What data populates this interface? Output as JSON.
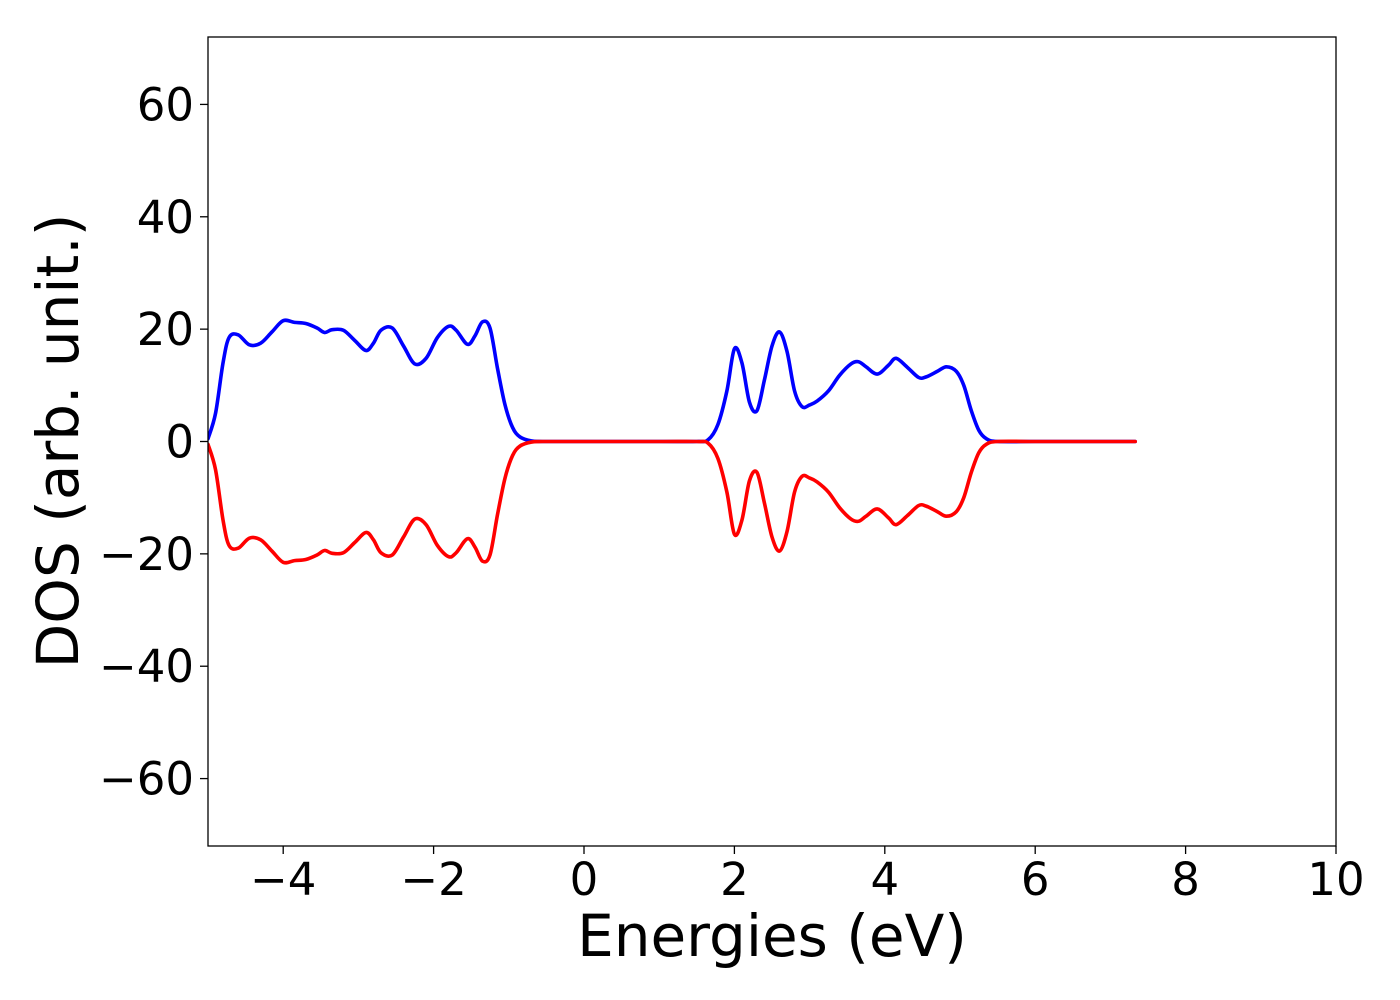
{
  "chart_data": {
    "type": "line",
    "title": "",
    "xlabel": "Energies (eV)",
    "ylabel": "DOS (arb. unit.)",
    "xlim": [
      -5,
      10
    ],
    "ylim": [
      -72,
      72
    ],
    "xticks": [
      -4,
      -2,
      0,
      2,
      4,
      6,
      8,
      10
    ],
    "yticks": [
      -60,
      -40,
      -20,
      0,
      20,
      40,
      60
    ],
    "xtick_labels": [
      "−4",
      "−2",
      "0",
      "2",
      "4",
      "6",
      "8",
      "10"
    ],
    "ytick_labels": [
      "−60",
      "−40",
      "−20",
      "0",
      "20",
      "40",
      "60"
    ],
    "grid": false,
    "legend": "none",
    "series": [
      {
        "color": "#0000ff",
        "x": [
          -5.0,
          -4.9,
          -4.8,
          -4.72,
          -4.6,
          -4.45,
          -4.3,
          -4.15,
          -4.0,
          -3.85,
          -3.7,
          -3.55,
          -3.45,
          -3.35,
          -3.2,
          -3.05,
          -2.9,
          -2.8,
          -2.7,
          -2.55,
          -2.4,
          -2.25,
          -2.1,
          -1.95,
          -1.8,
          -1.7,
          -1.55,
          -1.45,
          -1.35,
          -1.25,
          -1.15,
          -1.05,
          -0.95,
          -0.85,
          -0.7,
          -0.55,
          0.0,
          1.0,
          1.5,
          1.65,
          1.78,
          1.9,
          2.0,
          2.1,
          2.2,
          2.3,
          2.4,
          2.5,
          2.6,
          2.7,
          2.8,
          2.9,
          3.0,
          3.1,
          3.25,
          3.4,
          3.55,
          3.65,
          3.75,
          3.9,
          4.05,
          4.15,
          4.3,
          4.45,
          4.55,
          4.7,
          4.82,
          4.95,
          5.05,
          5.15,
          5.25,
          5.35,
          5.5,
          6.0,
          6.5,
          7.33
        ],
        "values": [
          0.5,
          5,
          14,
          18.5,
          19,
          17.2,
          17.5,
          19.5,
          21.5,
          21.2,
          21,
          20.2,
          19.4,
          19.9,
          19.8,
          18,
          16.2,
          17.5,
          19.8,
          20.2,
          17,
          13.8,
          14.8,
          18.5,
          20.5,
          19.8,
          17.3,
          18.8,
          21.3,
          20.2,
          13,
          6.5,
          2.5,
          0.8,
          0.1,
          0,
          0,
          0,
          0,
          0.3,
          3,
          9,
          16.5,
          14,
          7,
          5.5,
          11,
          17,
          19.5,
          16,
          9,
          6.2,
          6.5,
          7.2,
          9,
          11.8,
          13.8,
          14.2,
          13.3,
          12,
          13.6,
          14.8,
          13.2,
          11.4,
          11.5,
          12.5,
          13.3,
          12.5,
          10,
          5.5,
          2,
          0.5,
          0,
          0,
          0,
          0
        ]
      },
      {
        "color": "#ff0000",
        "x": [
          -5.0,
          -4.9,
          -4.8,
          -4.72,
          -4.6,
          -4.45,
          -4.3,
          -4.15,
          -4.0,
          -3.85,
          -3.7,
          -3.55,
          -3.45,
          -3.35,
          -3.2,
          -3.05,
          -2.9,
          -2.8,
          -2.7,
          -2.55,
          -2.4,
          -2.25,
          -2.1,
          -1.95,
          -1.8,
          -1.7,
          -1.55,
          -1.45,
          -1.35,
          -1.25,
          -1.15,
          -1.05,
          -0.95,
          -0.85,
          -0.7,
          -0.55,
          0.0,
          1.0,
          1.5,
          1.65,
          1.78,
          1.9,
          2.0,
          2.1,
          2.2,
          2.3,
          2.4,
          2.5,
          2.6,
          2.7,
          2.8,
          2.9,
          3.0,
          3.1,
          3.25,
          3.4,
          3.55,
          3.65,
          3.75,
          3.9,
          4.05,
          4.15,
          4.3,
          4.45,
          4.55,
          4.7,
          4.82,
          4.95,
          5.05,
          5.15,
          5.25,
          5.35,
          5.5,
          6.0,
          6.5,
          7.33
        ],
        "values": [
          -0.5,
          -5,
          -14,
          -18.5,
          -19,
          -17.2,
          -17.5,
          -19.5,
          -21.5,
          -21.2,
          -21,
          -20.2,
          -19.4,
          -19.9,
          -19.8,
          -18,
          -16.2,
          -17.5,
          -19.8,
          -20.2,
          -17,
          -13.8,
          -14.8,
          -18.5,
          -20.5,
          -19.8,
          -17.3,
          -18.8,
          -21.3,
          -20.2,
          -13,
          -6.5,
          -2.5,
          -0.8,
          -0.1,
          0,
          0,
          0,
          0,
          -0.3,
          -3,
          -9,
          -16.5,
          -14,
          -7,
          -5.5,
          -11,
          -17,
          -19.5,
          -16,
          -9,
          -6.2,
          -6.5,
          -7.2,
          -9,
          -11.8,
          -13.8,
          -14.2,
          -13.3,
          -12,
          -13.6,
          -14.8,
          -13.2,
          -11.4,
          -11.5,
          -12.5,
          -13.3,
          -12.5,
          -10,
          -5.5,
          -2,
          -0.5,
          0,
          0,
          0,
          0
        ]
      }
    ]
  }
}
